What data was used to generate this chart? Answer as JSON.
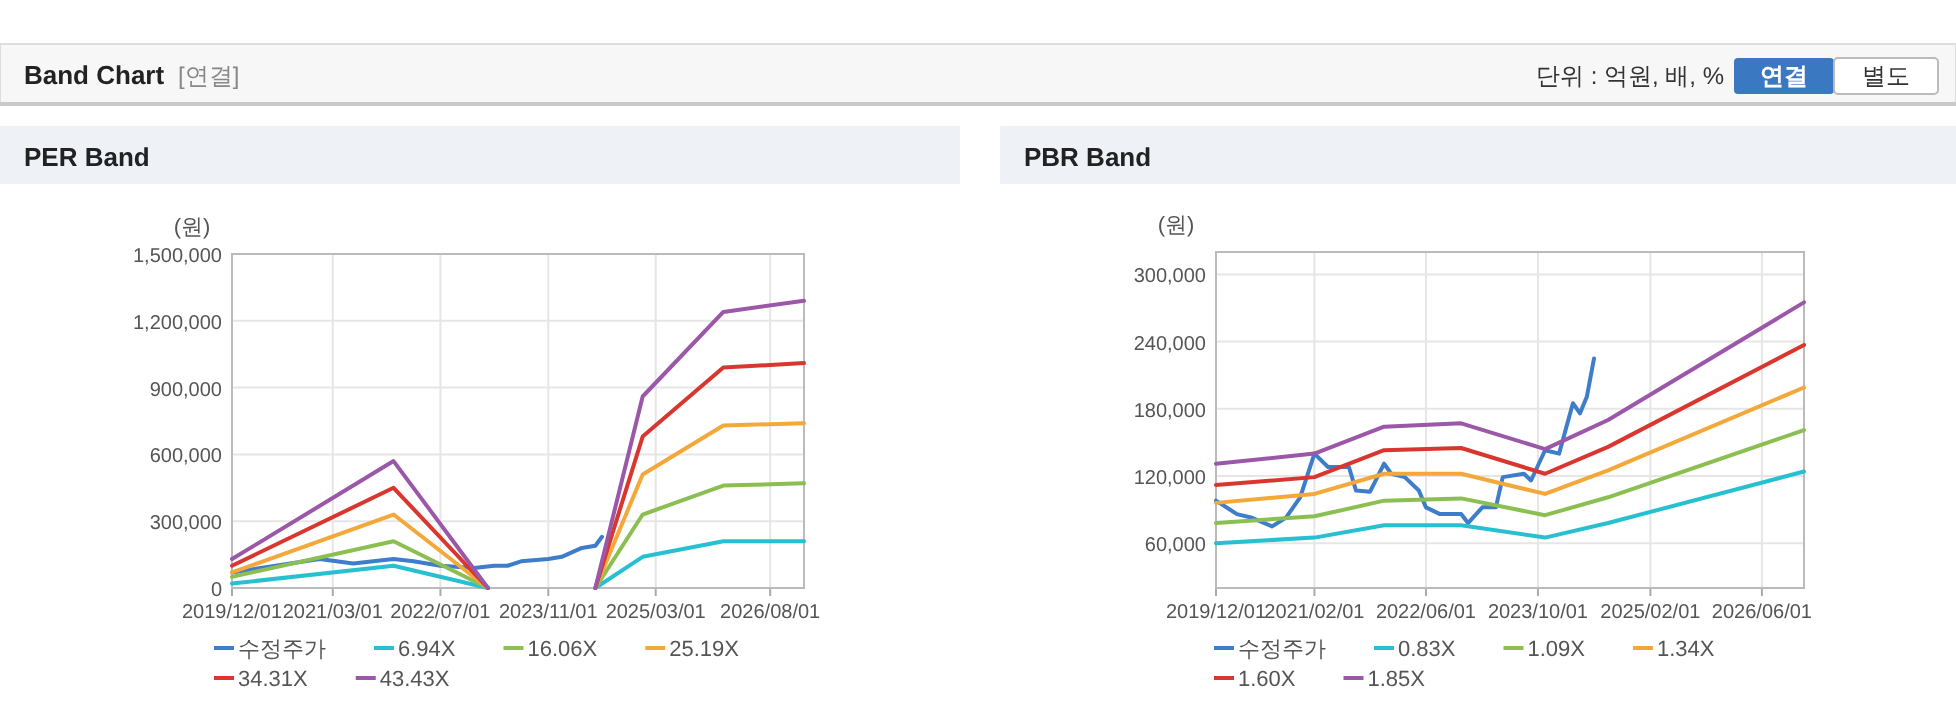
{
  "chart_data": [
    {
      "type": "line",
      "title": "PER Band",
      "ylabel": "(원)",
      "annotations": [
        "Band Chart",
        "[연결]",
        "단위 : 억원, 배, %",
        "연결",
        "별도"
      ],
      "xlim": [
        "2019-12",
        "2027-01"
      ],
      "xticks": [
        {
          "value": "2019-12",
          "label": "2019/12/01"
        },
        {
          "value": "2021-03",
          "label": "2021/03/01"
        },
        {
          "value": "2022-07",
          "label": "2022/07/01"
        },
        {
          "value": "2023-11",
          "label": "2023/11/01"
        },
        {
          "value": "2025-03",
          "label": "2025/03/01"
        },
        {
          "value": "2026-08",
          "label": "2026/08/01"
        }
      ],
      "ylim": [
        0,
        1500000
      ],
      "yticks": [
        {
          "value": 0,
          "label": "0"
        },
        {
          "value": 300000,
          "label": "300,000"
        },
        {
          "value": 600000,
          "label": "600,000"
        },
        {
          "value": 900000,
          "label": "900,000"
        },
        {
          "value": 1200000,
          "label": "1,200,000"
        },
        {
          "value": 1500000,
          "label": "1,500,000"
        }
      ],
      "grid": true,
      "legend": "bottom",
      "marker": "none",
      "line_style": "solid",
      "series": [
        {
          "name": "수정주가",
          "color": "#3d7dca",
          "x": [
            "2019-12",
            "2021-01",
            "2021-06",
            "2021-12",
            "2022-03",
            "2022-07",
            "2022-12",
            "2023-03",
            "2023-05",
            "2023-07",
            "2023-11",
            "2024-01",
            "2024-04",
            "2024-06",
            "2024-07"
          ],
          "values": [
            70000,
            130000,
            110000,
            130000,
            120000,
            100000,
            90000,
            100000,
            100000,
            120000,
            130000,
            140000,
            180000,
            190000,
            230000
          ]
        },
        {
          "name": "6.94X",
          "color": "#27c0d0",
          "x": [
            "2019-12",
            "2021-12",
            "2023-02",
            "2023-09",
            "2024-06",
            "2025-01",
            "2026-01",
            "2027-01"
          ],
          "values": [
            20000,
            100000,
            0,
            null,
            0,
            140000,
            210000,
            210000
          ]
        },
        {
          "name": "16.06X",
          "color": "#8cbf52",
          "x": [
            "2019-12",
            "2021-12",
            "2023-02",
            "2023-09",
            "2024-06",
            "2025-01",
            "2026-01",
            "2027-01"
          ],
          "values": [
            50000,
            210000,
            0,
            null,
            0,
            330000,
            460000,
            470000
          ]
        },
        {
          "name": "25.19X",
          "color": "#f5a83a",
          "x": [
            "2019-12",
            "2021-12",
            "2023-02",
            "2023-09",
            "2024-06",
            "2025-01",
            "2026-01",
            "2027-01"
          ],
          "values": [
            70000,
            330000,
            0,
            null,
            0,
            510000,
            730000,
            740000
          ]
        },
        {
          "name": "34.31X",
          "color": "#d9362f",
          "x": [
            "2019-12",
            "2021-12",
            "2023-02",
            "2023-09",
            "2024-06",
            "2025-01",
            "2026-01",
            "2027-01"
          ],
          "values": [
            100000,
            450000,
            0,
            null,
            0,
            680000,
            990000,
            1010000
          ]
        },
        {
          "name": "43.43X",
          "color": "#9b57a8",
          "x": [
            "2019-12",
            "2021-12",
            "2023-02",
            "2023-09",
            "2024-06",
            "2025-01",
            "2026-01",
            "2027-01"
          ],
          "values": [
            130000,
            570000,
            0,
            null,
            0,
            860000,
            1240000,
            1290000
          ]
        }
      ]
    },
    {
      "type": "line",
      "title": "PBR Band",
      "ylabel": "(원)",
      "xlim": [
        "2019-12",
        "2026-12"
      ],
      "xticks": [
        {
          "value": "2019-12",
          "label": "2019/12/01"
        },
        {
          "value": "2021-02",
          "label": "2021/02/01"
        },
        {
          "value": "2022-06",
          "label": "2022/06/01"
        },
        {
          "value": "2023-10",
          "label": "2023/10/01"
        },
        {
          "value": "2025-02",
          "label": "2025/02/01"
        },
        {
          "value": "2026-06",
          "label": "2026/06/01"
        }
      ],
      "ylim": [
        20000,
        320000
      ],
      "yticks": [
        {
          "value": 60000,
          "label": "60,000"
        },
        {
          "value": 120000,
          "label": "120,000"
        },
        {
          "value": 180000,
          "label": "180,000"
        },
        {
          "value": 240000,
          "label": "240,000"
        },
        {
          "value": 300000,
          "label": "300,000"
        }
      ],
      "grid": true,
      "legend": "bottom",
      "marker": "none",
      "line_style": "solid",
      "series": [
        {
          "name": "수정주가",
          "color": "#3d7dca",
          "x": [
            "2019-12",
            "2020-03",
            "2020-05",
            "2020-08",
            "2020-10",
            "2020-12",
            "2021-02",
            "2021-04",
            "2021-07",
            "2021-08",
            "2021-10",
            "2021-12",
            "2022-01",
            "2022-03",
            "2022-05",
            "2022-06",
            "2022-08",
            "2022-11",
            "2022-12",
            "2023-02",
            "2023-04",
            "2023-05",
            "2023-08",
            "2023-09",
            "2023-11",
            "2024-01",
            "2024-03",
            "2024-04",
            "2024-05",
            "2024-06"
          ],
          "values": [
            98000,
            86000,
            83000,
            75000,
            83000,
            101000,
            140000,
            128000,
            128000,
            107000,
            106000,
            131000,
            122000,
            119000,
            107000,
            92000,
            86000,
            86000,
            78000,
            92000,
            92000,
            119000,
            122000,
            116000,
            143000,
            140000,
            185000,
            176000,
            191000,
            225000
          ]
        },
        {
          "name": "0.83X",
          "color": "#27c0d0",
          "x": [
            "2019-12",
            "2021-02",
            "2021-12",
            "2022-11",
            "2023-11",
            "2024-08",
            "2026-12"
          ],
          "values": [
            60000,
            65000,
            76000,
            76000,
            65000,
            78000,
            124000
          ]
        },
        {
          "name": "1.09X",
          "color": "#8cbf52",
          "x": [
            "2019-12",
            "2021-02",
            "2021-12",
            "2022-11",
            "2023-11",
            "2024-08",
            "2026-12"
          ],
          "values": [
            78000,
            84000,
            98000,
            100000,
            85000,
            101000,
            161000
          ]
        },
        {
          "name": "1.34X",
          "color": "#f5a83a",
          "x": [
            "2019-12",
            "2021-02",
            "2021-12",
            "2022-11",
            "2023-11",
            "2024-08",
            "2026-12"
          ],
          "values": [
            96000,
            104000,
            122000,
            122000,
            104000,
            125000,
            199000
          ]
        },
        {
          "name": "1.60X",
          "color": "#d9362f",
          "x": [
            "2019-12",
            "2021-02",
            "2021-12",
            "2022-11",
            "2023-11",
            "2024-08",
            "2026-12"
          ],
          "values": [
            112000,
            119000,
            143000,
            145000,
            122000,
            146000,
            237000
          ]
        },
        {
          "name": "1.85X",
          "color": "#9b57a8",
          "x": [
            "2019-12",
            "2021-02",
            "2021-12",
            "2022-11",
            "2023-11",
            "2024-08",
            "2026-12"
          ],
          "values": [
            131000,
            140000,
            164000,
            167000,
            144000,
            170000,
            275000
          ]
        }
      ]
    }
  ]
}
